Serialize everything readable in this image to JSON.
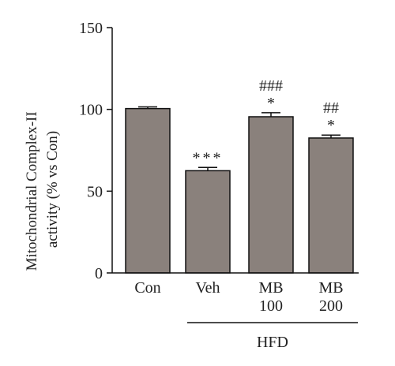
{
  "chart_data": {
    "type": "bar",
    "title": "",
    "xlabel": "",
    "ylabel_line1": "Mitochondrial Complex-II",
    "ylabel_line2": "activity (% vs Con)",
    "ylim": [
      0,
      150
    ],
    "yticks": [
      0,
      50,
      100,
      150
    ],
    "categories": [
      {
        "line1": "Con",
        "line2": ""
      },
      {
        "line1": "Veh",
        "line2": ""
      },
      {
        "line1": "MB",
        "line2": "100"
      },
      {
        "line1": "MB",
        "line2": "200"
      }
    ],
    "values": [
      100.5,
      62.5,
      95.5,
      82.5
    ],
    "errors": [
      1.0,
      2.0,
      2.5,
      1.8
    ],
    "annotations": [
      {
        "line1": "",
        "line2": ""
      },
      {
        "line1": "",
        "line2": "***"
      },
      {
        "line1": "###",
        "line2": "*"
      },
      {
        "line1": "##",
        "line2": "*"
      }
    ],
    "group": {
      "label": "HFD",
      "from_index": 1,
      "to_index": 3
    },
    "colors": {
      "bar_fill": "#8a817c",
      "bar_stroke": "#111111",
      "axis": "#111111"
    }
  }
}
